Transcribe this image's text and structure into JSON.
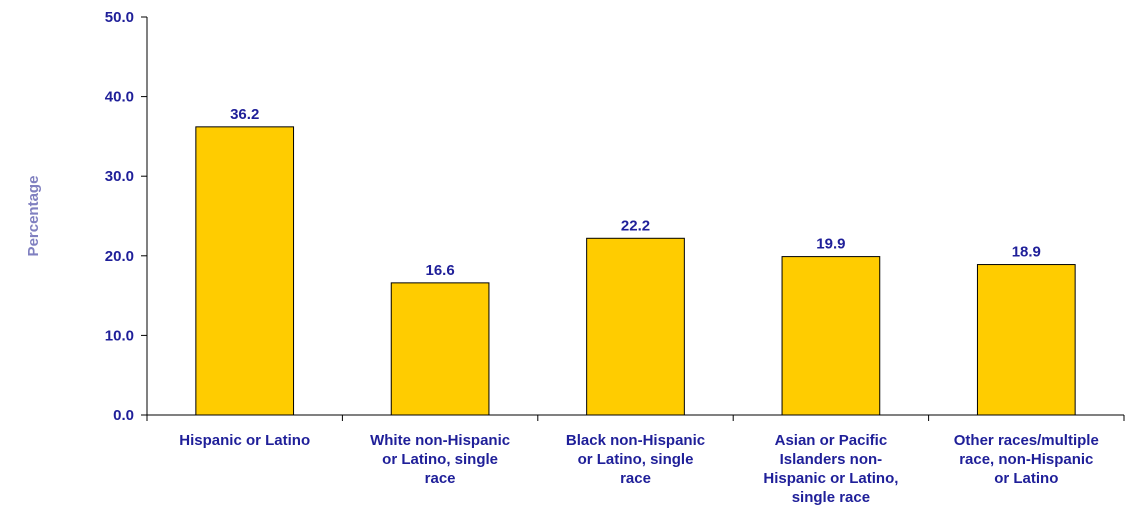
{
  "chart_data": {
    "type": "bar",
    "title": "",
    "xlabel": "",
    "ylabel": "Percentage",
    "ylim": [
      0,
      50
    ],
    "yticks": [
      "0.0",
      "10.0",
      "20.0",
      "30.0",
      "40.0",
      "50.0"
    ],
    "grid": false,
    "categories": [
      [
        "Hispanic or Latino"
      ],
      [
        "White non-Hispanic",
        "or Latino, single",
        "race"
      ],
      [
        "Black non-Hispanic",
        "or Latino, single",
        "race"
      ],
      [
        "Asian or Pacific",
        "Islanders non-",
        "Hispanic or Latino,",
        "single race"
      ],
      [
        "Other races/multiple",
        "race, non-Hispanic",
        "or Latino"
      ]
    ],
    "values": [
      36.2,
      16.6,
      22.2,
      19.9,
      18.9
    ],
    "data_labels": [
      "36.2",
      "16.6",
      "22.2",
      "19.9",
      "18.9"
    ],
    "colors": {
      "bar_fill": "#FFCC00",
      "bar_stroke": "#000000",
      "axis": "#000000",
      "text": "#1f1f99",
      "ylabel": "#8080c0"
    }
  }
}
